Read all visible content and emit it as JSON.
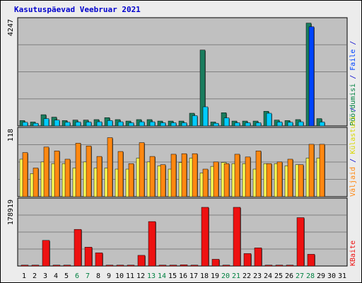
{
  "title": "Kasutuspäevad Veebruar 2021",
  "colors": {
    "frame_bg": "#ececec",
    "plot_bg": "#c0c0c0",
    "grid": "#7f7f7f",
    "hits": "#1a7d5e",
    "files": "#00ccff",
    "files_peak": "#0044ff",
    "pages": "#ffff55",
    "visits": "#ff8811",
    "kbytes": "#ee1111",
    "weekend": "#008040",
    "weekday": "#000000",
    "legend_blue": "#0000cc",
    "legend_green": "#008040",
    "legend_red": "#ee1111",
    "legend_orange": "#ff8811",
    "legend_yellow": "#d8d800"
  },
  "chart_data": [
    {
      "type": "bar",
      "panel": "hits-files",
      "ymax_label": "4247",
      "ylim": [
        0,
        4247
      ],
      "categories": [
        "1",
        "2",
        "3",
        "4",
        "5",
        "6",
        "7",
        "8",
        "9",
        "10",
        "11",
        "12",
        "13",
        "14",
        "15",
        "16",
        "17",
        "18",
        "19",
        "20",
        "21",
        "22",
        "23",
        "24",
        "25",
        "26",
        "27",
        "28",
        "29",
        "30",
        "31"
      ],
      "legend": [
        "Pöördumisi",
        "Faile"
      ],
      "series": [
        {
          "name": "Pöördumisi",
          "values": [
            220,
            160,
            460,
            360,
            220,
            240,
            240,
            260,
            340,
            260,
            200,
            260,
            260,
            200,
            200,
            200,
            520,
            3100,
            160,
            540,
            200,
            200,
            200,
            600,
            240,
            220,
            260,
            4200,
            300,
            null,
            null
          ]
        },
        {
          "name": "Faile",
          "values": [
            150,
            110,
            300,
            240,
            150,
            160,
            160,
            170,
            220,
            170,
            130,
            170,
            170,
            130,
            130,
            130,
            420,
            780,
            110,
            330,
            130,
            130,
            130,
            520,
            160,
            150,
            170,
            4050,
            160,
            null,
            null
          ]
        }
      ]
    },
    {
      "type": "bar",
      "panel": "pages-visits",
      "ymax_label": "118",
      "ylim": [
        0,
        118
      ],
      "categories": [
        "1",
        "2",
        "3",
        "4",
        "5",
        "6",
        "7",
        "8",
        "9",
        "10",
        "11",
        "12",
        "13",
        "14",
        "15",
        "16",
        "17",
        "18",
        "19",
        "20",
        "21",
        "22",
        "23",
        "24",
        "25",
        "26",
        "27",
        "28",
        "29",
        "30",
        "31"
      ],
      "legend": [
        "Külastusi",
        "Väljaid"
      ],
      "series": [
        {
          "name": "Külastusi",
          "values": [
            68,
            42,
            63,
            60,
            60,
            52,
            63,
            52,
            52,
            50,
            50,
            70,
            63,
            56,
            50,
            62,
            70,
            43,
            55,
            62,
            60,
            60,
            50,
            60,
            60,
            56,
            58,
            70,
            70,
            null,
            null
          ]
        },
        {
          "name": "Väljaid",
          "values": [
            80,
            52,
            90,
            83,
            68,
            97,
            92,
            73,
            107,
            82,
            60,
            98,
            73,
            58,
            77,
            78,
            78,
            50,
            63,
            60,
            77,
            72,
            83,
            60,
            63,
            68,
            58,
            95,
            95,
            null,
            null
          ]
        }
      ]
    },
    {
      "type": "bar",
      "panel": "kbytes",
      "ymax_label": "178919",
      "ylim": [
        0,
        178919
      ],
      "categories": [
        "1",
        "2",
        "3",
        "4",
        "5",
        "6",
        "7",
        "8",
        "9",
        "10",
        "11",
        "12",
        "13",
        "14",
        "15",
        "16",
        "17",
        "18",
        "19",
        "20",
        "21",
        "22",
        "23",
        "24",
        "25",
        "26",
        "27",
        "28",
        "29",
        "30",
        "31"
      ],
      "legend": [
        "KBaite"
      ],
      "series": [
        {
          "name": "KBaite",
          "values": [
            2500,
            2500,
            72000,
            2500,
            2500,
            103000,
            53000,
            37000,
            2500,
            2500,
            2500,
            30000,
            125000,
            2500,
            2500,
            3500,
            2500,
            165000,
            19000,
            2500,
            165000,
            35000,
            51000,
            2500,
            2500,
            2500,
            136000,
            33000,
            null,
            null,
            null
          ]
        }
      ]
    }
  ],
  "x_axis": {
    "labels": [
      "1",
      "2",
      "3",
      "4",
      "5",
      "6",
      "7",
      "8",
      "9",
      "10",
      "11",
      "12",
      "13",
      "14",
      "15",
      "16",
      "17",
      "18",
      "19",
      "20",
      "21",
      "22",
      "23",
      "24",
      "25",
      "26",
      "27",
      "28",
      "29",
      "30",
      "31"
    ],
    "weekend": [
      6,
      7,
      13,
      14,
      20,
      21,
      27,
      28
    ]
  }
}
